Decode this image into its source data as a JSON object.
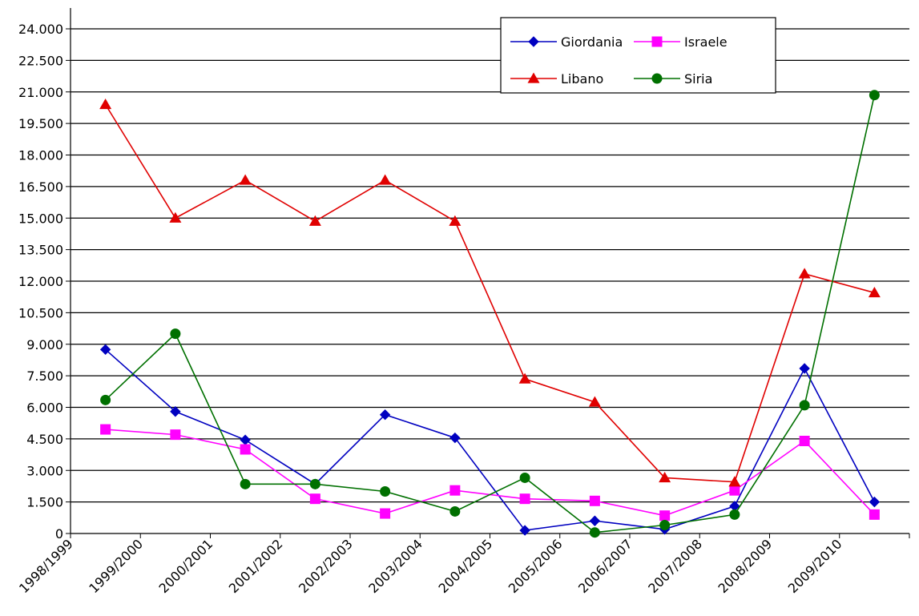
{
  "chart_data": {
    "type": "line",
    "title": "",
    "xlabel": "",
    "ylabel": "",
    "ylim": [
      0,
      24000
    ],
    "yticks": [
      0,
      1500,
      3000,
      4500,
      6000,
      7500,
      9000,
      10500,
      12000,
      13500,
      15000,
      16500,
      18000,
      19500,
      21000,
      22500,
      24000
    ],
    "ytick_labels": [
      "0",
      "1.500",
      "3.000",
      "4.500",
      "6.000",
      "7.500",
      "9.000",
      "10.500",
      "12.000",
      "13.500",
      "15.000",
      "16.500",
      "18.000",
      "19.500",
      "21.000",
      "22.500",
      "24.000"
    ],
    "categories": [
      "1998/1999",
      "1999/2000",
      "2000/2001",
      "2001/2002",
      "2002/2003",
      "2003/2004",
      "2004/2005",
      "2005/2006",
      "2006/2007",
      "2007/2008",
      "2008/2009",
      "2009/2010"
    ],
    "grid": "horizontal",
    "legend_position": "top-right",
    "series": [
      {
        "name": "Giordania",
        "color": "#0000c0",
        "marker": "diamond",
        "values": [
          8750,
          5800,
          4450,
          2350,
          5650,
          4550,
          150,
          600,
          200,
          1300,
          7850,
          1500
        ]
      },
      {
        "name": "Israele",
        "color": "#ff00ff",
        "marker": "square",
        "values": [
          4950,
          4700,
          4000,
          1650,
          950,
          2050,
          1650,
          1550,
          850,
          2050,
          4400,
          900
        ]
      },
      {
        "name": "Libano",
        "color": "#e00000",
        "marker": "triangle",
        "values": [
          20400,
          15000,
          16800,
          14850,
          16800,
          14850,
          7350,
          6250,
          2650,
          2450,
          12350,
          11450
        ]
      },
      {
        "name": "Siria",
        "color": "#007000",
        "marker": "circle",
        "values": [
          6350,
          9500,
          2350,
          2350,
          2000,
          1050,
          2650,
          50,
          400,
          900,
          6100,
          20850
        ]
      }
    ]
  }
}
